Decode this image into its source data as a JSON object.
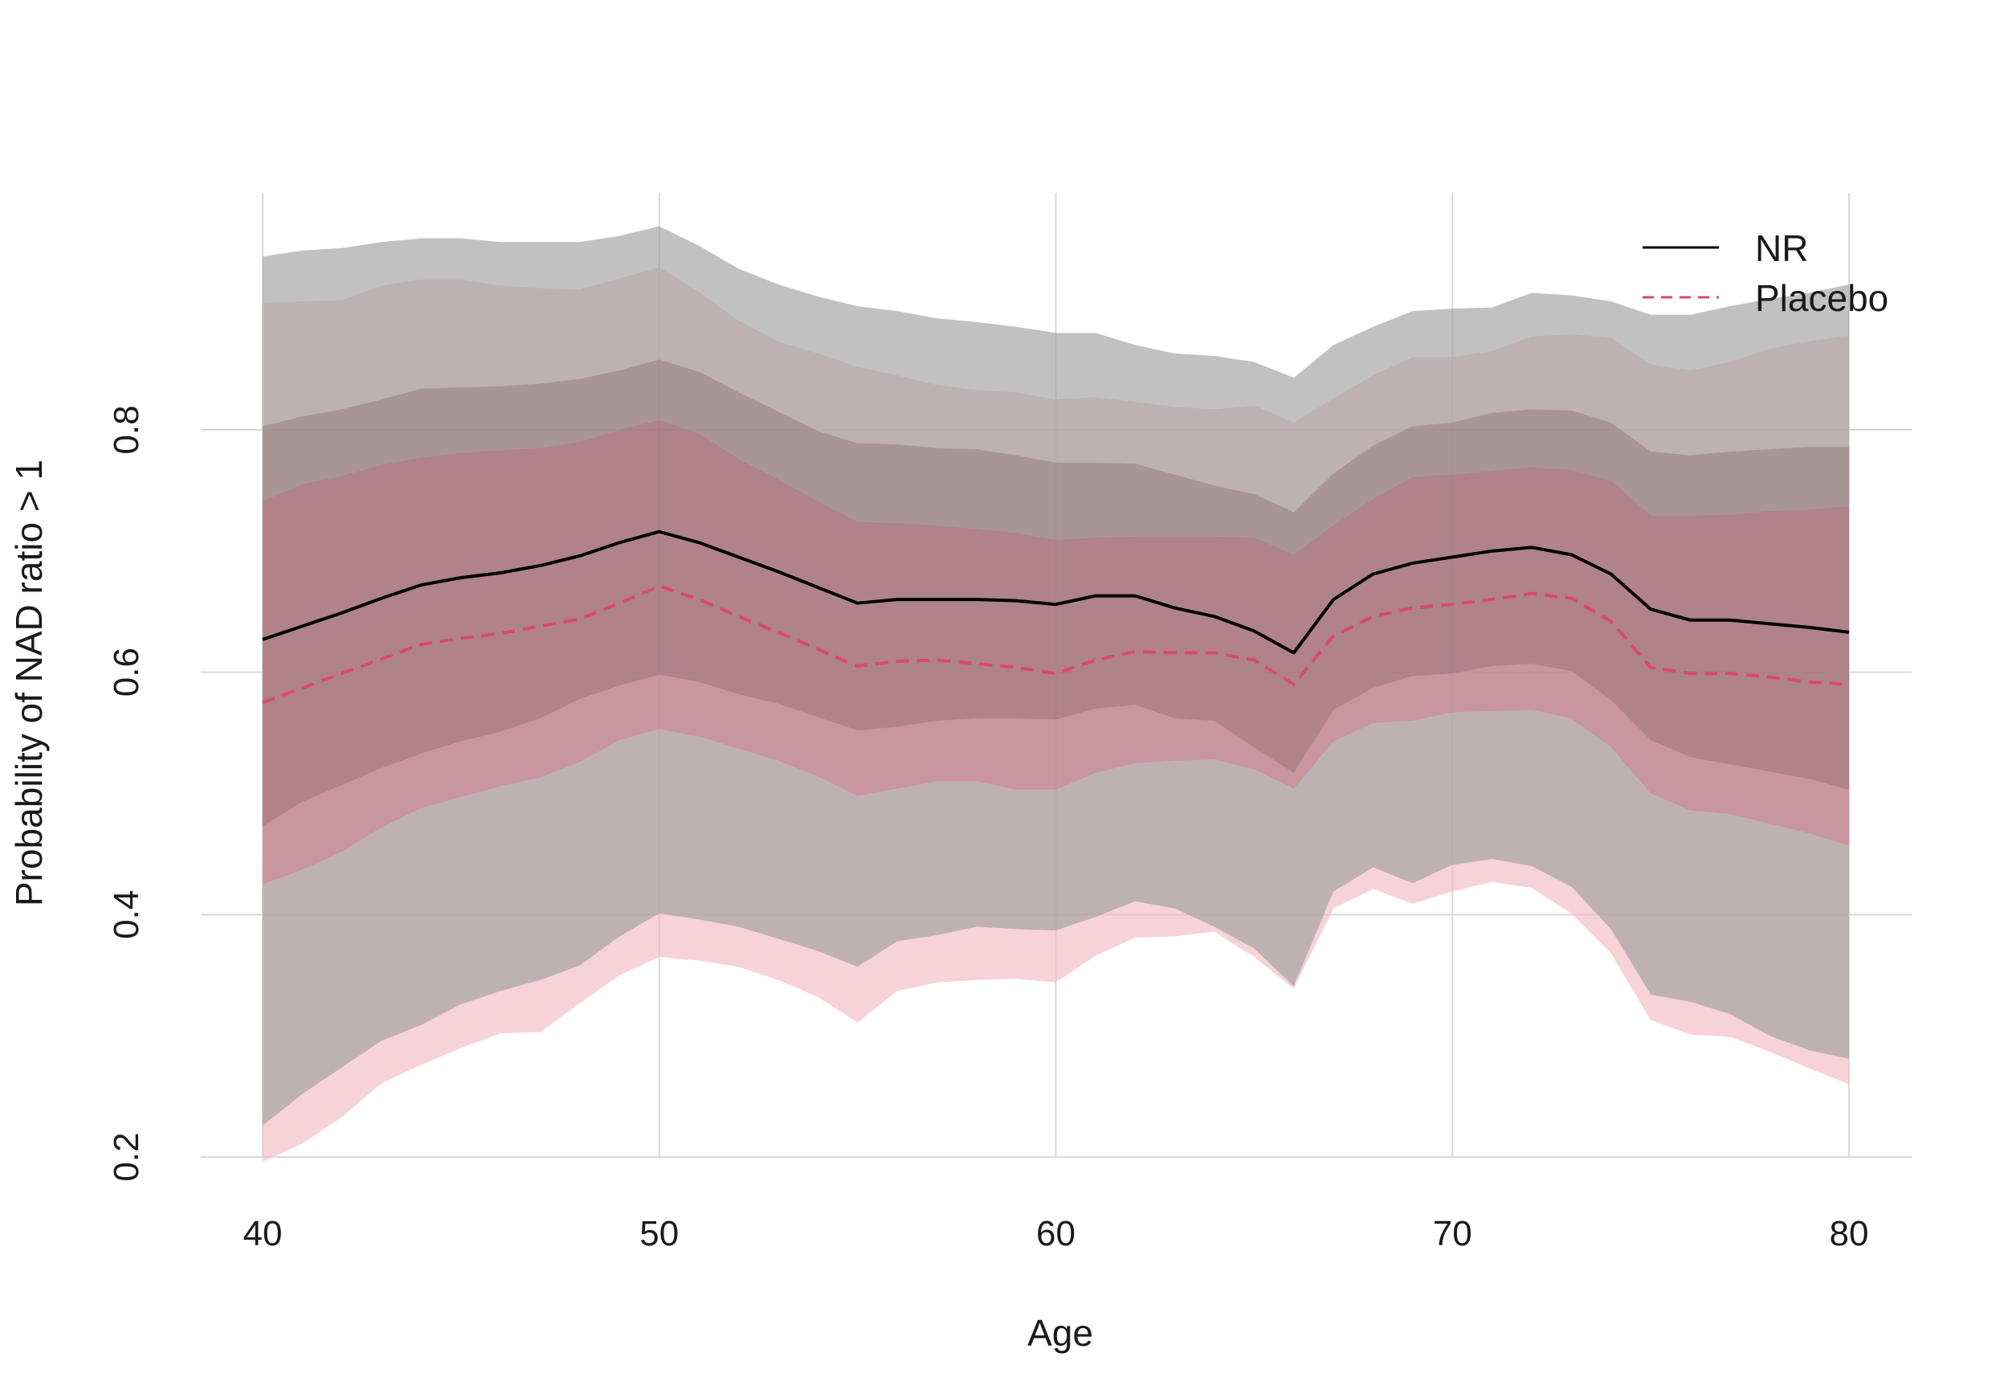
{
  "chart_data": {
    "type": "line",
    "xlabel": "Age",
    "ylabel": "Probability of NAD ratio > 1",
    "xlim": [
      38.4,
      81.6
    ],
    "ylim": [
      0.2,
      1.0
    ],
    "xticks": [
      40,
      50,
      60,
      70,
      80
    ],
    "yticks": [
      0.2,
      0.4,
      0.6,
      0.8
    ],
    "xtick_labels": [
      "40",
      "50",
      "60",
      "70",
      "80"
    ],
    "ytick_labels": [
      "0.2",
      "0.4",
      "0.6",
      "0.8"
    ],
    "grid": true,
    "legend_position": "top-right",
    "x": [
      40,
      41,
      42,
      43,
      44,
      45,
      46,
      47,
      48,
      49,
      50,
      51,
      52,
      53,
      54,
      55,
      56,
      57,
      58,
      59,
      60,
      61,
      62,
      63,
      64,
      65,
      66,
      67,
      68,
      69,
      70,
      71,
      72,
      73,
      74,
      75,
      76,
      77,
      78,
      79,
      80
    ],
    "series": [
      {
        "name": "NR",
        "color": "#000000",
        "dash": "solid",
        "band_color": "#7f7f7f",
        "values": [
          0.627,
          0.638,
          0.649,
          0.661,
          0.672,
          0.678,
          0.682,
          0.688,
          0.696,
          0.707,
          0.716,
          0.707,
          0.695,
          0.683,
          0.67,
          0.657,
          0.66,
          0.66,
          0.66,
          0.659,
          0.656,
          0.663,
          0.663,
          0.653,
          0.646,
          0.634,
          0.616,
          0.66,
          0.681,
          0.69,
          0.695,
          0.7,
          0.703,
          0.697,
          0.681,
          0.652,
          0.643,
          0.643,
          0.64,
          0.637,
          0.633
        ],
        "inner_lo": [
          0.473,
          0.493,
          0.507,
          0.521,
          0.533,
          0.543,
          0.551,
          0.562,
          0.578,
          0.589,
          0.598,
          0.592,
          0.582,
          0.574,
          0.563,
          0.552,
          0.555,
          0.56,
          0.562,
          0.562,
          0.561,
          0.57,
          0.573,
          0.562,
          0.56,
          0.538,
          0.517,
          0.569,
          0.587,
          0.597,
          0.599,
          0.605,
          0.607,
          0.601,
          0.577,
          0.544,
          0.53,
          0.524,
          0.518,
          0.512,
          0.503
        ],
        "inner_hi": [
          0.803,
          0.811,
          0.817,
          0.825,
          0.834,
          0.835,
          0.836,
          0.838,
          0.842,
          0.849,
          0.858,
          0.848,
          0.831,
          0.815,
          0.799,
          0.789,
          0.788,
          0.785,
          0.784,
          0.779,
          0.773,
          0.773,
          0.772,
          0.763,
          0.754,
          0.747,
          0.732,
          0.764,
          0.787,
          0.803,
          0.806,
          0.814,
          0.817,
          0.816,
          0.806,
          0.782,
          0.779,
          0.782,
          0.784,
          0.786,
          0.786
        ],
        "outer_lo": [
          0.226,
          0.252,
          0.274,
          0.296,
          0.309,
          0.326,
          0.337,
          0.346,
          0.358,
          0.382,
          0.401,
          0.396,
          0.39,
          0.38,
          0.37,
          0.357,
          0.378,
          0.383,
          0.39,
          0.388,
          0.387,
          0.398,
          0.411,
          0.405,
          0.39,
          0.372,
          0.341,
          0.419,
          0.439,
          0.426,
          0.441,
          0.446,
          0.44,
          0.423,
          0.388,
          0.334,
          0.328,
          0.318,
          0.3,
          0.288,
          0.281
        ],
        "outer_hi": [
          0.943,
          0.948,
          0.95,
          0.955,
          0.958,
          0.958,
          0.955,
          0.955,
          0.955,
          0.96,
          0.968,
          0.952,
          0.933,
          0.92,
          0.91,
          0.902,
          0.898,
          0.892,
          0.889,
          0.885,
          0.88,
          0.88,
          0.87,
          0.863,
          0.861,
          0.856,
          0.843,
          0.87,
          0.885,
          0.898,
          0.9,
          0.901,
          0.913,
          0.911,
          0.906,
          0.895,
          0.895,
          0.902,
          0.908,
          0.913,
          0.92
        ]
      },
      {
        "name": "Placebo",
        "color": "#d9496b",
        "dash": "dashed",
        "band_color": "#e06a85",
        "values": [
          0.575,
          0.587,
          0.599,
          0.611,
          0.623,
          0.628,
          0.632,
          0.638,
          0.644,
          0.657,
          0.671,
          0.66,
          0.646,
          0.633,
          0.619,
          0.605,
          0.609,
          0.61,
          0.607,
          0.604,
          0.599,
          0.61,
          0.617,
          0.616,
          0.616,
          0.61,
          0.59,
          0.63,
          0.646,
          0.653,
          0.656,
          0.66,
          0.665,
          0.661,
          0.642,
          0.604,
          0.599,
          0.599,
          0.596,
          0.592,
          0.59
        ],
        "inner_lo": [
          0.425,
          0.437,
          0.452,
          0.472,
          0.488,
          0.497,
          0.506,
          0.513,
          0.526,
          0.544,
          0.553,
          0.547,
          0.537,
          0.527,
          0.514,
          0.498,
          0.504,
          0.51,
          0.51,
          0.503,
          0.503,
          0.517,
          0.525,
          0.527,
          0.528,
          0.52,
          0.504,
          0.543,
          0.558,
          0.56,
          0.567,
          0.568,
          0.569,
          0.562,
          0.538,
          0.5,
          0.486,
          0.483,
          0.475,
          0.467,
          0.457
        ],
        "inner_hi": [
          0.741,
          0.755,
          0.762,
          0.771,
          0.777,
          0.781,
          0.783,
          0.785,
          0.79,
          0.8,
          0.808,
          0.797,
          0.776,
          0.759,
          0.741,
          0.724,
          0.723,
          0.721,
          0.718,
          0.715,
          0.709,
          0.711,
          0.712,
          0.712,
          0.712,
          0.711,
          0.697,
          0.721,
          0.743,
          0.761,
          0.763,
          0.766,
          0.769,
          0.767,
          0.758,
          0.729,
          0.729,
          0.73,
          0.733,
          0.734,
          0.737
        ],
        "outer_lo": [
          0.196,
          0.211,
          0.233,
          0.261,
          0.276,
          0.29,
          0.302,
          0.303,
          0.327,
          0.35,
          0.365,
          0.362,
          0.357,
          0.346,
          0.332,
          0.311,
          0.337,
          0.344,
          0.346,
          0.347,
          0.344,
          0.366,
          0.381,
          0.382,
          0.386,
          0.365,
          0.339,
          0.405,
          0.421,
          0.409,
          0.419,
          0.427,
          0.422,
          0.401,
          0.368,
          0.313,
          0.301,
          0.299,
          0.287,
          0.273,
          0.26
        ],
        "outer_hi": [
          0.905,
          0.906,
          0.907,
          0.919,
          0.924,
          0.924,
          0.919,
          0.917,
          0.916,
          0.925,
          0.934,
          0.914,
          0.89,
          0.873,
          0.863,
          0.852,
          0.845,
          0.837,
          0.833,
          0.831,
          0.825,
          0.827,
          0.823,
          0.819,
          0.817,
          0.82,
          0.806,
          0.826,
          0.845,
          0.86,
          0.86,
          0.865,
          0.877,
          0.879,
          0.876,
          0.854,
          0.849,
          0.856,
          0.867,
          0.873,
          0.878
        ]
      }
    ]
  }
}
